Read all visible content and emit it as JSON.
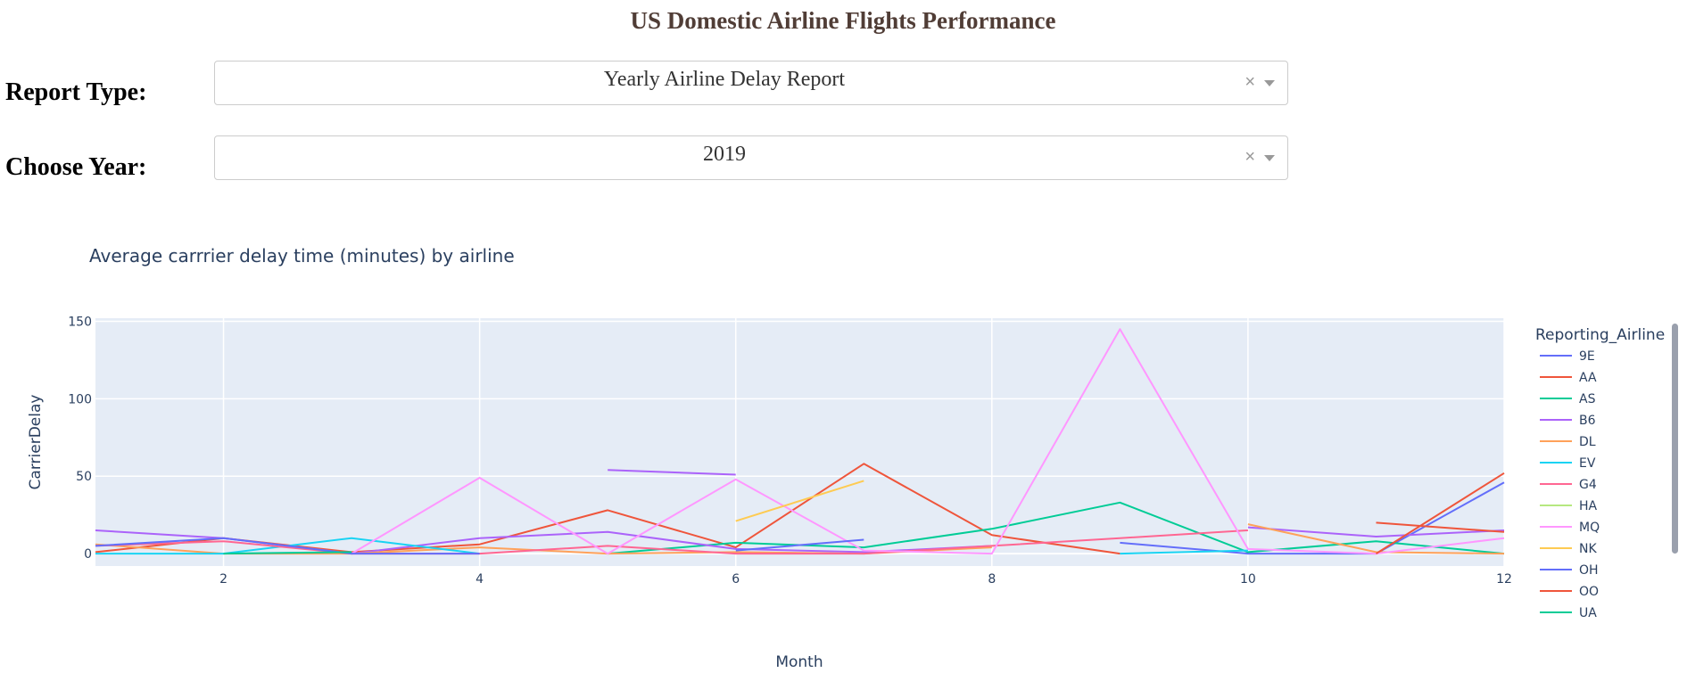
{
  "page": {
    "title": "US Domestic Airline Flights Performance"
  },
  "controls": {
    "report_type": {
      "label": "Report Type:",
      "value": "Yearly Airline Delay Report",
      "clear": "×"
    },
    "year": {
      "label": "Choose Year:",
      "value": "2019",
      "clear": "×"
    }
  },
  "colors": {
    "title": "#503D36",
    "plot_bg": "#E5ECF6",
    "text": "#2a3f5f"
  },
  "chart_data": {
    "type": "line",
    "title": "Average carrrier delay time (minutes) by airline",
    "xlabel": "Month",
    "ylabel": "CarrierDelay",
    "xlim": [
      1,
      12
    ],
    "ylim": [
      -8,
      152
    ],
    "xticks": [
      2,
      4,
      6,
      8,
      10,
      12
    ],
    "yticks": [
      0,
      50,
      100,
      150
    ],
    "grid": true,
    "legend_title": "Reporting_Airline",
    "legend_position": "right",
    "series": [
      {
        "name": "9E",
        "color": "#636EFA",
        "points": [
          [
            9,
            7
          ],
          [
            10,
            0
          ],
          [
            11,
            0
          ],
          [
            12,
            46
          ]
        ]
      },
      {
        "name": "AA",
        "color": "#EF553B",
        "points": [
          [
            1,
            1
          ],
          [
            2,
            10
          ],
          [
            3,
            1
          ],
          [
            4,
            6
          ],
          [
            5,
            28
          ],
          [
            6,
            4
          ],
          [
            7,
            58
          ],
          [
            8,
            12
          ],
          [
            9,
            0
          ]
        ]
      },
      {
        "name": "AS",
        "color": "#00CC96",
        "points": [
          [
            5,
            0
          ],
          [
            6,
            7
          ],
          [
            7,
            4
          ],
          [
            8,
            16
          ],
          [
            9,
            33
          ],
          [
            10,
            1
          ],
          [
            11,
            8
          ],
          [
            12,
            0
          ]
        ]
      },
      {
        "name": "B6",
        "color": "#AB63FA",
        "points": [
          [
            1,
            15
          ],
          [
            2,
            10
          ],
          [
            3,
            0
          ],
          [
            4,
            10
          ],
          [
            5,
            14
          ],
          [
            6,
            3
          ],
          [
            7,
            1
          ],
          [
            8,
            5
          ]
        ]
      },
      {
        "name": "B6",
        "color": "#AB63FA",
        "points": [
          [
            5,
            54
          ],
          [
            6,
            51
          ]
        ]
      },
      {
        "name": "B6",
        "color": "#AB63FA",
        "points": [
          [
            10,
            17
          ],
          [
            11,
            11
          ],
          [
            12,
            15
          ]
        ]
      },
      {
        "name": "DL",
        "color": "#FFA15A",
        "points": [
          [
            1,
            6
          ],
          [
            2,
            0
          ],
          [
            3,
            0
          ],
          [
            4,
            4
          ],
          [
            5,
            0
          ],
          [
            6,
            1
          ],
          [
            7,
            0
          ],
          [
            8,
            4
          ]
        ]
      },
      {
        "name": "DL",
        "color": "#FFA15A",
        "points": [
          [
            10,
            19
          ],
          [
            11,
            1
          ],
          [
            12,
            0
          ]
        ]
      },
      {
        "name": "EV",
        "color": "#19D3F3",
        "points": [
          [
            1,
            0
          ],
          [
            2,
            0
          ],
          [
            3,
            10
          ],
          [
            4,
            0
          ]
        ]
      },
      {
        "name": "EV",
        "color": "#19D3F3",
        "points": [
          [
            9,
            0
          ],
          [
            10,
            2
          ]
        ]
      },
      {
        "name": "G4",
        "color": "#FF6692",
        "points": [
          [
            1,
            5
          ],
          [
            2,
            8
          ],
          [
            3,
            0
          ],
          [
            4,
            0
          ],
          [
            5,
            5
          ],
          [
            6,
            0
          ],
          [
            7,
            0
          ],
          [
            8,
            5
          ],
          [
            9,
            10
          ],
          [
            10,
            15
          ]
        ]
      },
      {
        "name": "MQ",
        "color": "#FF97FF",
        "points": [
          [
            3,
            0
          ],
          [
            4,
            49
          ],
          [
            5,
            0
          ],
          [
            6,
            48
          ],
          [
            7,
            2
          ],
          [
            8,
            0
          ],
          [
            9,
            145
          ],
          [
            10,
            3
          ],
          [
            11,
            0
          ],
          [
            12,
            10
          ]
        ]
      },
      {
        "name": "NK",
        "color": "#FECB52",
        "points": [
          [
            6,
            21
          ],
          [
            7,
            47
          ]
        ]
      },
      {
        "name": "OH",
        "color": "#636EFA",
        "points": [
          [
            1,
            5
          ],
          [
            2,
            10
          ],
          [
            3,
            0
          ],
          [
            4,
            0
          ]
        ]
      },
      {
        "name": "OH",
        "color": "#636EFA",
        "points": [
          [
            6,
            2
          ],
          [
            7,
            9
          ]
        ]
      },
      {
        "name": "OO",
        "color": "#EF553B",
        "points": [
          [
            11,
            20
          ],
          [
            12,
            14
          ]
        ]
      },
      {
        "name": "OO",
        "color": "#EF553B",
        "points": [
          [
            11,
            0
          ],
          [
            12,
            52
          ]
        ]
      },
      {
        "name": "UA",
        "color": "#00CC96",
        "points": [
          [
            2,
            0
          ],
          [
            3,
            1
          ]
        ]
      }
    ],
    "legend": [
      {
        "name": "9E",
        "color": "#636EFA"
      },
      {
        "name": "AA",
        "color": "#EF553B"
      },
      {
        "name": "AS",
        "color": "#00CC96"
      },
      {
        "name": "B6",
        "color": "#AB63FA"
      },
      {
        "name": "DL",
        "color": "#FFA15A"
      },
      {
        "name": "EV",
        "color": "#19D3F3"
      },
      {
        "name": "G4",
        "color": "#FF6692"
      },
      {
        "name": "HA",
        "color": "#B6E880"
      },
      {
        "name": "MQ",
        "color": "#FF97FF"
      },
      {
        "name": "NK",
        "color": "#FECB52"
      },
      {
        "name": "OH",
        "color": "#636EFA"
      },
      {
        "name": "OO",
        "color": "#EF553B"
      },
      {
        "name": "UA",
        "color": "#00CC96"
      }
    ]
  }
}
